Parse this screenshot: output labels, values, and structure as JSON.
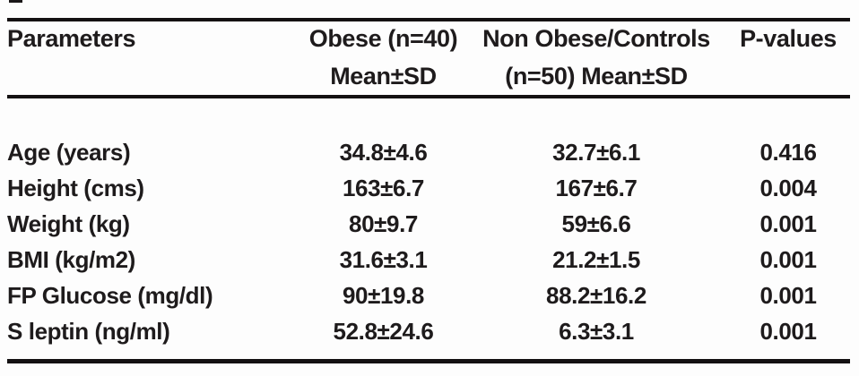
{
  "table": {
    "header": {
      "col1": {
        "line1": "Parameters",
        "line2": ""
      },
      "col2": {
        "line1": "Obese (n=40)",
        "line2": "Mean±SD"
      },
      "col3": {
        "line1": "Non Obese/Controls",
        "line2": "(n=50) Mean±SD"
      },
      "col4": {
        "line1": "P-values",
        "line2": ""
      }
    },
    "rows": [
      {
        "parameter": "Age (years)",
        "obese": "34.8±4.6",
        "control": "32.7±6.1",
        "p": "0.416"
      },
      {
        "parameter": "Height (cms)",
        "obese": "163±6.7",
        "control": "167±6.7",
        "p": "0.004"
      },
      {
        "parameter": "Weight (kg)",
        "obese": "80±9.7",
        "control": "59±6.6",
        "p": "0.001"
      },
      {
        "parameter": "BMI (kg/m2)",
        "obese": "31.6±3.1",
        "control": "21.2±1.5",
        "p": "0.001"
      },
      {
        "parameter": "FP Glucose (mg/dl)",
        "obese": "90±19.8",
        "control": "88.2±16.2",
        "p": "0.001"
      },
      {
        "parameter": "S leptin (ng/ml)",
        "obese": "52.8±24.6",
        "control": "6.3±3.1",
        "p": "0.001"
      }
    ]
  },
  "chart_data": {
    "type": "table",
    "title": "",
    "columns": [
      "Parameters",
      "Obese (n=40) Mean±SD",
      "Non Obese/Controls (n=50) Mean±SD",
      "P-values"
    ],
    "rows": [
      [
        "Age (years)",
        "34.8±4.6",
        "32.7±6.1",
        "0.416"
      ],
      [
        "Height (cms)",
        "163±6.7",
        "167±6.7",
        "0.004"
      ],
      [
        "Weight (kg)",
        "80±9.7",
        "59±6.6",
        "0.001"
      ],
      [
        "BMI (kg/m2)",
        "31.6±3.1",
        "21.2±1.5",
        "0.001"
      ],
      [
        "FP Glucose (mg/dl)",
        "90±19.8",
        "88.2±16.2",
        "0.001"
      ],
      [
        "S leptin (ng/ml)",
        "52.8±24.6",
        "6.3±3.1",
        "0.001"
      ]
    ]
  },
  "colors": {
    "text": "#1e1b1c",
    "rule": "#141112",
    "background": "#fdfdfd"
  }
}
